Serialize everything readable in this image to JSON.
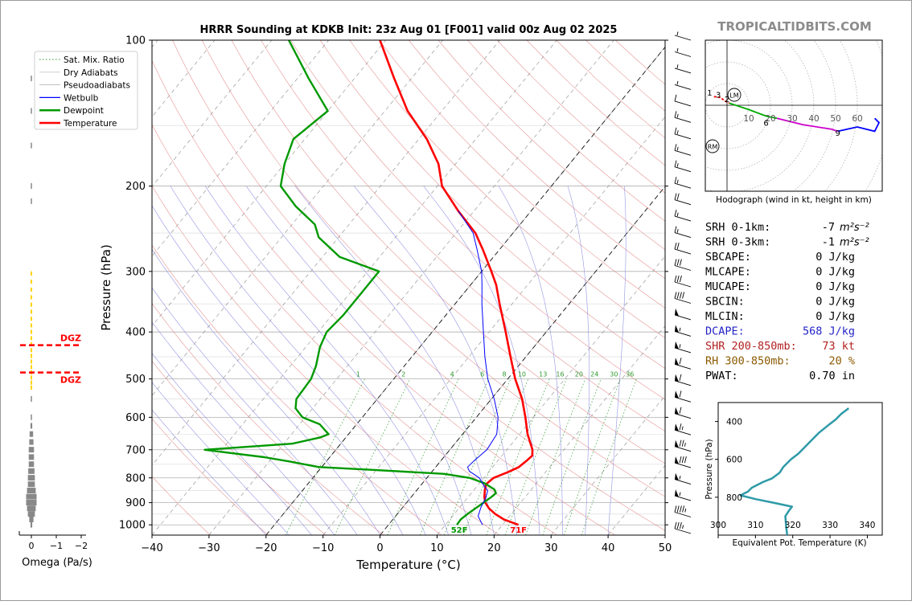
{
  "watermark": "TROPICALTIDBITS.COM",
  "chart_data": [
    {
      "type": "line",
      "title": "HRRR Sounding at KDKB Init: 23z Aug 01 [F001] valid 00z Aug 02 2025",
      "xlabel": "Temperature (°C)",
      "ylabel": "Pressure (hPa)",
      "xlim": [
        -40,
        50
      ],
      "ylim": [
        1050,
        100
      ],
      "log_scale_y": true,
      "skew_t": true,
      "x_ticks": [
        "−40",
        "−30",
        "−20",
        "−10",
        "0",
        "10",
        "20",
        "30",
        "40",
        "50"
      ],
      "y_ticks": [
        "100",
        "200",
        "300",
        "400",
        "500",
        "600",
        "700",
        "800",
        "900",
        "1000"
      ],
      "legend_position": "upper-left",
      "legend": [
        "Sat. Mix. Ratio",
        "Dry Adiabats",
        "Pseudoadiabats",
        "Wetbulb",
        "Dewpoint",
        "Temperature"
      ],
      "mixing_ratio_labels": [
        "1",
        "2",
        "4",
        "6",
        "8",
        "10",
        "13",
        "16",
        "20",
        "24",
        "30",
        "36"
      ],
      "surface_labels": {
        "dewpoint": "52F",
        "temperature": "71F"
      },
      "colors": {
        "temperature": "#ff0000",
        "dewpoint": "#009900",
        "wetbulb": "#0000ff",
        "dry_adiabat": "#e07a7a",
        "pseudoadiabat": "#8a8ae0",
        "mixing_ratio": "#2e9a2e"
      },
      "series": [
        {
          "name": "Temperature",
          "points": [
            [
              1000,
              22.8
            ],
            [
              975,
              19.5
            ],
            [
              950,
              17.2
            ],
            [
              925,
              15.3
            ],
            [
              900,
              13.8
            ],
            [
              875,
              12.8
            ],
            [
              850,
              12.0
            ],
            [
              825,
              11.3
            ],
            [
              800,
              11.7
            ],
            [
              780,
              13.3
            ],
            [
              760,
              14.6
            ],
            [
              740,
              15.0
            ],
            [
              720,
              15.3
            ],
            [
              700,
              14.5
            ],
            [
              650,
              11.4
            ],
            [
              600,
              8.6
            ],
            [
              550,
              5.4
            ],
            [
              500,
              1.3
            ],
            [
              450,
              -2.7
            ],
            [
              400,
              -7.1
            ],
            [
              350,
              -12.2
            ],
            [
              320,
              -15.5
            ],
            [
              300,
              -18.3
            ],
            [
              270,
              -23.0
            ],
            [
              250,
              -26.6
            ],
            [
              225,
              -32.8
            ],
            [
              200,
              -39.2
            ],
            [
              180,
              -43.0
            ],
            [
              160,
              -48.6
            ],
            [
              140,
              -56.0
            ],
            [
              120,
              -63.0
            ],
            [
              100,
              -71.0
            ]
          ]
        },
        {
          "name": "Dewpoint",
          "points": [
            [
              1000,
              12.0
            ],
            [
              975,
              11.9
            ],
            [
              950,
              12.3
            ],
            [
              925,
              12.9
            ],
            [
              900,
              13.5
            ],
            [
              875,
              14.1
            ],
            [
              860,
              14.3
            ],
            [
              845,
              13.5
            ],
            [
              820,
              10.8
            ],
            [
              800,
              7.5
            ],
            [
              785,
              2.5
            ],
            [
              770,
              -11.0
            ],
            [
              760,
              -20.5
            ],
            [
              740,
              -26.5
            ],
            [
              725,
              -31.5
            ],
            [
              700,
              -43.0
            ],
            [
              680,
              -28.5
            ],
            [
              660,
              -24.5
            ],
            [
              650,
              -23.5
            ],
            [
              620,
              -26.5
            ],
            [
              600,
              -30.5
            ],
            [
              575,
              -33.0
            ],
            [
              550,
              -34.2
            ],
            [
              500,
              -34.5
            ],
            [
              470,
              -35.5
            ],
            [
              430,
              -37.5
            ],
            [
              400,
              -38.5
            ],
            [
              370,
              -38.0
            ],
            [
              340,
              -38.0
            ],
            [
              310,
              -38.0
            ],
            [
              300,
              -38.0
            ],
            [
              280,
              -47.0
            ],
            [
              255,
              -53.5
            ],
            [
              240,
              -56.0
            ],
            [
              220,
              -62.0
            ],
            [
              200,
              -67.5
            ],
            [
              180,
              -70.0
            ],
            [
              160,
              -72.0
            ],
            [
              140,
              -70.0
            ],
            [
              120,
              -78.0
            ],
            [
              100,
              -87.0
            ]
          ]
        },
        {
          "name": "Wetbulb",
          "points": [
            [
              1000,
              16.5
            ],
            [
              960,
              14.5
            ],
            [
              920,
              13.7
            ],
            [
              880,
              13.2
            ],
            [
              850,
              12.5
            ],
            [
              825,
              10.8
            ],
            [
              800,
              9.2
            ],
            [
              775,
              6.5
            ],
            [
              760,
              5.6
            ],
            [
              740,
              5.8
            ],
            [
              700,
              6.5
            ],
            [
              650,
              6.0
            ],
            [
              600,
              3.8
            ],
            [
              550,
              0.5
            ],
            [
              500,
              -3.5
            ],
            [
              450,
              -7.2
            ],
            [
              400,
              -11.0
            ],
            [
              350,
              -15.3
            ],
            [
              320,
              -18.0
            ],
            [
              300,
              -20.0
            ],
            [
              270,
              -24.0
            ],
            [
              250,
              -27.0
            ],
            [
              225,
              -32.8
            ]
          ]
        }
      ],
      "wind_barbs_kt": [
        5,
        5,
        5,
        5,
        10,
        15,
        15,
        15,
        15,
        15,
        20,
        15,
        15,
        20,
        30,
        30,
        40,
        50,
        55,
        55,
        60,
        60,
        60,
        60,
        65,
        75,
        80,
        55,
        55,
        45,
        35
      ]
    },
    {
      "type": "line",
      "title": "Omega (Pa/s)",
      "xlabel": "Omega (Pa/s)",
      "x_ticks": [
        "0",
        "−1",
        "−2"
      ],
      "dgz_label": "DGZ",
      "dgz_bounds_hpa": [
        426,
        485
      ],
      "omega_bars": [
        [
          1000,
          0.05
        ],
        [
          975,
          0.12
        ],
        [
          950,
          0.2
        ],
        [
          925,
          0.25
        ],
        [
          900,
          0.3
        ],
        [
          875,
          0.3
        ],
        [
          850,
          0.25
        ],
        [
          825,
          0.2
        ],
        [
          800,
          0.2
        ],
        [
          775,
          0.18
        ],
        [
          750,
          0.15
        ],
        [
          725,
          0.15
        ],
        [
          700,
          0.15
        ],
        [
          675,
          0.12
        ],
        [
          650,
          0.1
        ],
        [
          625,
          0.05
        ],
        [
          600,
          0.02
        ],
        [
          550,
          0.02
        ],
        [
          215,
          0.02
        ],
        [
          200,
          0.02
        ],
        [
          165,
          0.01
        ],
        [
          140,
          0.01
        ],
        [
          120,
          0.01
        ]
      ]
    },
    {
      "type": "line",
      "title": "Hodograph (wind in kt, height in km)",
      "ring_labels": [
        "10",
        "20",
        "30",
        "40",
        "50",
        "60"
      ],
      "markers": [
        "LM",
        "RM"
      ],
      "height_labels": [
        "1",
        "3",
        "2",
        "6",
        "9"
      ],
      "trace": [
        {
          "segment": "0-3km",
          "color": "#ff0000",
          "points": [
            [
              -6,
              4
            ],
            [
              -3,
              3.5
            ],
            [
              -1,
              2
            ],
            [
              1,
              1
            ]
          ]
        },
        {
          "segment": "3-6km",
          "color": "#00aa00",
          "points": [
            [
              1,
              1
            ],
            [
              10,
              -2
            ],
            [
              18,
              -5
            ],
            [
              23,
              -6
            ]
          ]
        },
        {
          "segment": "6-9km",
          "color": "#cc00cc",
          "points": [
            [
              23,
              -6
            ],
            [
              35,
              -9
            ],
            [
              48,
              -11
            ],
            [
              51,
              -12
            ]
          ]
        },
        {
          "segment": "9-12km",
          "color": "#0000ff",
          "points": [
            [
              51,
              -12
            ],
            [
              60,
              -10
            ],
            [
              68,
              -12
            ],
            [
              70,
              -8
            ],
            [
              68,
              -6
            ]
          ]
        }
      ]
    },
    {
      "type": "line",
      "title": "",
      "xlabel": "Equivalent Pot. Temperature (K)",
      "ylabel": "Pressure (hPa)",
      "xlim": [
        300,
        345
      ],
      "ylim": [
        1000,
        300
      ],
      "x_ticks": [
        "300",
        "310",
        "320",
        "330",
        "340"
      ],
      "y_ticks": [
        "400",
        "600",
        "800"
      ],
      "color": "#2e9aa8",
      "series": [
        {
          "name": "",
          "points": [
            [
              1000,
              318.5
            ],
            [
              950,
              318.2
            ],
            [
              900,
              318.0
            ],
            [
              870,
              319.0
            ],
            [
              850,
              319.8
            ],
            [
              830,
              315.0
            ],
            [
              810,
              310.0
            ],
            [
              790,
              306.0
            ],
            [
              770,
              308.0
            ],
            [
              750,
              309.0
            ],
            [
              720,
              312.0
            ],
            [
              700,
              314.5
            ],
            [
              670,
              316.5
            ],
            [
              640,
              317.5
            ],
            [
              600,
              319.5
            ],
            [
              570,
              321.5
            ],
            [
              540,
              323.0
            ],
            [
              500,
              325.0
            ],
            [
              460,
              327.0
            ],
            [
              420,
              329.5
            ],
            [
              390,
              331.5
            ],
            [
              360,
              333.0
            ],
            [
              330,
              335.0
            ]
          ]
        }
      ]
    }
  ],
  "stats": [
    {
      "label": "SRH 0-1km:",
      "value": "-7",
      "unit": "m²s⁻²",
      "color": "#000000"
    },
    {
      "label": "SRH 0-3km:",
      "value": "-1",
      "unit": "m²s⁻²",
      "color": "#000000"
    },
    {
      "label": "SBCAPE:",
      "value": "0 J/kg",
      "unit": "",
      "color": "#000000"
    },
    {
      "label": "MLCAPE:",
      "value": "0 J/kg",
      "unit": "",
      "color": "#000000"
    },
    {
      "label": "MUCAPE:",
      "value": "0 J/kg",
      "unit": "",
      "color": "#000000"
    },
    {
      "label": "SBCIN:",
      "value": "0 J/kg",
      "unit": "",
      "color": "#000000"
    },
    {
      "label": "MLCIN:",
      "value": "0 J/kg",
      "unit": "",
      "color": "#000000"
    },
    {
      "label": "DCAPE:",
      "value": "568 J/kg",
      "unit": "",
      "color": "#2323c8"
    },
    {
      "label": "SHR 200-850mb:",
      "value": "73 kt",
      "unit": "",
      "color": "#b22222"
    },
    {
      "label": "RH 300-850mb:",
      "value": "20 %",
      "unit": "",
      "color": "#8b5a00"
    },
    {
      "label": "PWAT:",
      "value": "0.70 in",
      "unit": "",
      "color": "#000000"
    }
  ]
}
